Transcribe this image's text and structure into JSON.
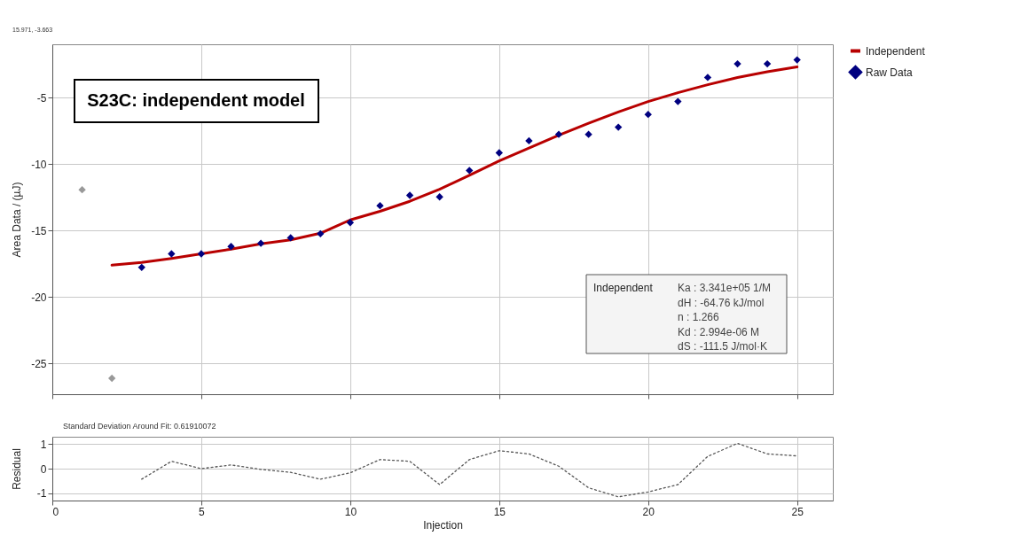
{
  "chart_data": [
    {
      "type": "scatter",
      "title": "S23C: independent model",
      "ylabel": "Area Data / (µJ)",
      "xlim": [
        0,
        26.2
      ],
      "xticks": [
        0,
        5,
        10,
        15,
        20,
        25
      ],
      "ylim": [
        -27.3,
        -1
      ],
      "yticks": [
        -25,
        -20,
        -15,
        -10,
        -5
      ],
      "grid": true,
      "legend": "top right",
      "tick_labels": "y",
      "annotations": [
        "15.971, -3.663",
        "Independent",
        "Ka : 3.341e+05 1/M",
        "dH : -64.76 kJ/mol",
        "n : 1.266",
        "Kd : 2.994e-06 M",
        "dS : -111.5 J/mol·K"
      ],
      "series": [
        {
          "name": "Independent",
          "type": "line",
          "color": "#b80000",
          "x": [
            2,
            3,
            4,
            5,
            6,
            7,
            8,
            9,
            10,
            11,
            12,
            13,
            14,
            15,
            16,
            17,
            18,
            19,
            20,
            21,
            22,
            23,
            24,
            25
          ],
          "values": [
            -17.6,
            -17.4,
            -17.1,
            -16.75,
            -16.4,
            -16.0,
            -15.7,
            -15.2,
            -14.2,
            -13.55,
            -12.8,
            -11.9,
            -10.85,
            -9.76,
            -8.8,
            -7.83,
            -6.93,
            -6.08,
            -5.3,
            -4.64,
            -4.04,
            -3.5,
            -3.07,
            -2.7
          ]
        },
        {
          "name": "Raw Data",
          "type": "scatter",
          "marker": "diamond",
          "color": "#000080",
          "x": [
            3,
            4,
            5,
            6,
            7,
            8,
            9,
            10,
            11,
            12,
            13,
            14,
            15,
            16,
            17,
            18,
            19,
            20,
            21,
            22,
            23,
            24,
            25
          ],
          "values": [
            -17.77,
            -16.75,
            -16.75,
            -16.2,
            -15.96,
            -15.54,
            -15.24,
            -14.4,
            -13.13,
            -12.35,
            -12.47,
            -10.48,
            -9.16,
            -8.25,
            -7.77,
            -7.77,
            -7.23,
            -6.27,
            -5.3,
            -3.49,
            -2.47,
            -2.47,
            -2.17
          ]
        },
        {
          "type": "scatter",
          "marker": "diamond",
          "color": "#999999",
          "x": [
            1,
            2
          ],
          "values": [
            -11.93,
            -26.1
          ]
        }
      ]
    },
    {
      "type": "line",
      "xlabel": "Injection",
      "ylabel": "Residual",
      "xlim": [
        0,
        26.2
      ],
      "xticks": [
        0,
        5,
        10,
        15,
        20,
        25
      ],
      "ylim": [
        -1.3,
        1.3
      ],
      "yticks": [
        -1,
        0,
        1
      ],
      "grid": true,
      "line_style": "dotted",
      "annotations": [
        "Standard Deviation Around Fit:  0.61910072"
      ],
      "series": [
        {
          "color": "#555555",
          "x": [
            3,
            4,
            5,
            6,
            7,
            8,
            9,
            10,
            11,
            12,
            13,
            14,
            15,
            16,
            17,
            18,
            19,
            20,
            21,
            22,
            23,
            24,
            25
          ],
          "values": [
            -0.43,
            0.3,
            0.0,
            0.15,
            -0.03,
            -0.15,
            -0.43,
            -0.17,
            0.37,
            0.3,
            -0.65,
            0.37,
            0.73,
            0.6,
            0.1,
            -0.78,
            -1.15,
            -0.95,
            -0.65,
            0.5,
            1.03,
            0.6,
            0.52
          ]
        }
      ]
    }
  ]
}
